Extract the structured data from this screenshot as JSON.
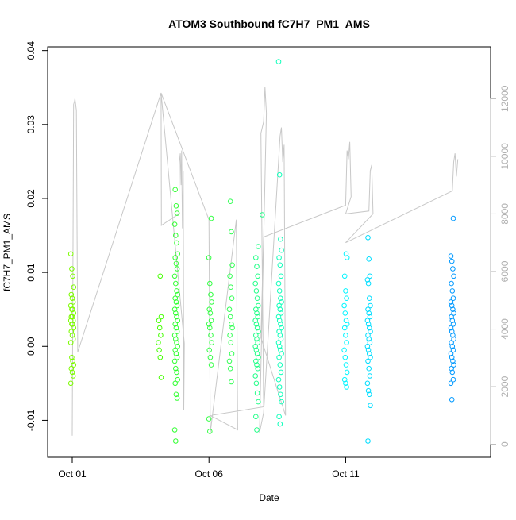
{
  "chart_data": {
    "type": "scatter",
    "title": "ATOM3 Southbound fC7H7_PM1_AMS",
    "xlabel": "Date",
    "ylabel": "fC7H7_PM1_AMS",
    "x_axis": {
      "ticks": [
        {
          "day": 1,
          "label": "Oct 01"
        },
        {
          "day": 6,
          "label": "Oct 06"
        },
        {
          "day": 11,
          "label": "Oct 11"
        }
      ],
      "range_days": [
        0.1,
        16.3
      ]
    },
    "y_axis_left": {
      "range": [
        -0.015,
        0.0405
      ],
      "ticks": [
        {
          "value": -0.01,
          "label": "-0.01"
        },
        {
          "value": 0.0,
          "label": "0.00"
        },
        {
          "value": 0.01,
          "label": "0.01"
        },
        {
          "value": 0.02,
          "label": "0.02"
        },
        {
          "value": 0.03,
          "label": "0.03"
        },
        {
          "value": 0.04,
          "label": "0.04"
        }
      ]
    },
    "y_axis_right": {
      "range": [
        -450,
        13800
      ],
      "ticks": [
        {
          "value": 0,
          "label": "0"
        },
        {
          "value": 2000,
          "label": "2000"
        },
        {
          "value": 4000,
          "label": "4000"
        },
        {
          "value": 6000,
          "label": "6000"
        },
        {
          "value": 8000,
          "label": "8000"
        },
        {
          "value": 10000,
          "label": "10000"
        },
        {
          "value": 12000,
          "label": "12000"
        }
      ]
    },
    "grid": false,
    "legend": "none",
    "colors": {
      "altitude_line": "#c8c8c8",
      "point_gradient": [
        "#7CFC00",
        "#33ff33",
        "#00ffaa",
        "#00ffff",
        "#0099ff"
      ]
    },
    "groups": [
      {
        "day": 1.0,
        "color": "#7CFC00",
        "ys": [
          0.0125,
          0.0105,
          0.0095,
          0.008,
          0.007,
          0.0065,
          0.006,
          0.0055,
          0.005,
          0.005,
          0.0045,
          0.004,
          0.004,
          0.0035,
          0.0035,
          0.003,
          0.003,
          0.0025,
          0.002,
          0.0015,
          0.001,
          0.0005,
          -0.0015,
          -0.002,
          -0.0025,
          -0.003,
          -0.0035,
          -0.004,
          -0.005
        ]
      },
      {
        "day": 4.2,
        "color": "#44ff00",
        "ys": [
          0.0095,
          0.004,
          0.0035,
          0.0025,
          0.0015,
          0.0005,
          -0.0005,
          -0.0015,
          -0.0042
        ]
      },
      {
        "day": 4.8,
        "color": "#33ff33",
        "ys": [
          0.0212,
          0.019,
          0.018,
          0.0165,
          0.015,
          0.014,
          0.0125,
          0.012,
          0.0112,
          0.0105,
          0.0095,
          0.0085,
          0.0075,
          0.007,
          0.0065,
          0.006,
          0.0055,
          0.005,
          0.0045,
          0.004,
          0.0035,
          0.003,
          0.0025,
          0.002,
          0.0015,
          0.001,
          0.0005,
          0.0,
          -0.0005,
          -0.001,
          -0.0015,
          -0.002,
          -0.003,
          -0.0035,
          -0.0045,
          -0.005,
          -0.0065,
          -0.007,
          -0.0113,
          -0.0128
        ]
      },
      {
        "day": 6.05,
        "color": "#33ff44",
        "ys": [
          0.0173,
          0.012,
          0.0085,
          0.007,
          0.006,
          0.005,
          0.0045,
          0.0035,
          0.003,
          0.0025,
          0.0015,
          0.0005,
          -0.0005,
          -0.0015,
          -0.0025,
          -0.0098,
          -0.0115
        ]
      },
      {
        "day": 6.8,
        "color": "#33ff55",
        "ys": [
          0.0196,
          0.0155,
          0.011,
          0.0095,
          0.008,
          0.0065,
          0.005,
          0.004,
          0.003,
          0.0025,
          0.0015,
          0.0005,
          -0.001,
          -0.002,
          -0.003,
          -0.0048
        ]
      },
      {
        "day": 7.75,
        "color": "#22ff88",
        "ys": [
          0.0135,
          0.012,
          0.0108,
          0.0095,
          0.0085,
          0.0075,
          0.0065,
          0.0055,
          0.005,
          0.0045,
          0.004,
          0.0035,
          0.003,
          0.0025,
          0.002,
          0.0015,
          0.001,
          0.0005,
          0.0,
          -0.0005,
          -0.001,
          -0.0015,
          -0.002,
          -0.0025,
          -0.003,
          -0.004,
          -0.005,
          -0.0063,
          -0.0075,
          -0.0095,
          -0.0113
        ]
      },
      {
        "day": 7.95,
        "color": "#22ff88",
        "ys": [
          0.0178
        ]
      },
      {
        "day": 8.6,
        "color": "#11ffbb",
        "ys": [
          0.0385,
          0.0232,
          0.0145,
          0.013,
          0.012,
          0.011,
          0.0095,
          0.0085,
          0.0075,
          0.0065,
          0.006,
          0.0055,
          0.005,
          0.0045,
          0.004,
          0.0035,
          0.003,
          0.0025,
          0.002,
          0.0015,
          0.001,
          0.0005,
          0.0,
          -0.0005,
          -0.001,
          -0.0015,
          -0.0025,
          -0.0035,
          -0.0045,
          -0.0055,
          -0.0065,
          -0.0075,
          -0.0095,
          -0.0105
        ]
      },
      {
        "day": 11.0,
        "color": "#00f5ff",
        "ys": [
          0.0125,
          0.012,
          0.0095,
          0.0075,
          0.0065,
          0.0055,
          0.0045,
          0.0035,
          0.003,
          0.0025,
          0.0015,
          0.0005,
          -0.0005,
          -0.0015,
          -0.0025,
          -0.0035,
          -0.0045,
          -0.005,
          -0.0055
        ]
      },
      {
        "day": 11.85,
        "color": "#00ddff",
        "ys": [
          0.0147,
          0.0118,
          0.0095,
          0.009,
          0.0085,
          0.0065,
          0.0055,
          0.005,
          0.0045,
          0.004,
          0.0035,
          0.003,
          0.0025,
          0.002,
          0.0015,
          0.001,
          0.0005,
          0.0,
          -0.0005,
          -0.001,
          -0.0015,
          -0.002,
          -0.003,
          -0.004,
          -0.005,
          -0.006,
          -0.0065,
          -0.008,
          -0.0128
        ]
      },
      {
        "day": 14.9,
        "color": "#0099ff",
        "ys": [
          0.0173,
          0.0122,
          0.0115,
          0.0105,
          0.0095,
          0.0085,
          0.0075,
          0.0065,
          0.006,
          0.0055,
          0.005,
          0.0045,
          0.004,
          0.0035,
          0.003,
          0.0025,
          0.002,
          0.0015,
          0.001,
          0.0005,
          0.0,
          -0.0005,
          -0.001,
          -0.0015,
          -0.002,
          -0.0025,
          -0.003,
          -0.0035,
          -0.0045,
          -0.005,
          -0.0072
        ]
      }
    ],
    "altitude_series": {
      "axis": "right",
      "x": [
        1.0,
        1.05,
        1.08,
        1.1,
        1.15,
        1.2,
        4.25,
        4.26,
        4.9,
        4.92,
        4.95,
        4.98,
        5.0,
        5.03,
        5.06,
        5.08,
        5.1,
        4.25,
        6.0,
        6.05,
        7.0,
        7.05,
        6.05,
        8.0,
        7.9,
        7.95,
        8.0,
        8.05,
        8.1,
        7.85,
        8.0,
        8.6,
        8.65,
        8.7,
        8.75,
        8.8,
        7.9,
        8.0,
        11.0,
        11.05,
        11.1,
        11.15,
        11.2,
        11.0,
        11.85,
        11.9,
        11.95,
        12.0,
        11.0,
        14.9,
        14.95,
        15.0,
        15.05,
        15.1
      ],
      "y": [
        300,
        11800,
        11900,
        12000,
        11600,
        3200,
        12200,
        7600,
        8000,
        9800,
        10100,
        9000,
        10200,
        7500,
        9500,
        1200,
        3500,
        12200,
        7800,
        400,
        7800,
        500,
        1000,
        1300,
        10800,
        11000,
        11200,
        12400,
        11500,
        400,
        1100,
        10700,
        11000,
        9800,
        10400,
        1000,
        3700,
        7200,
        8300,
        10200,
        9900,
        10500,
        8600,
        8000,
        8100,
        9500,
        9700,
        8000,
        7000,
        8800,
        9800,
        10100,
        9300,
        9900
      ]
    }
  }
}
